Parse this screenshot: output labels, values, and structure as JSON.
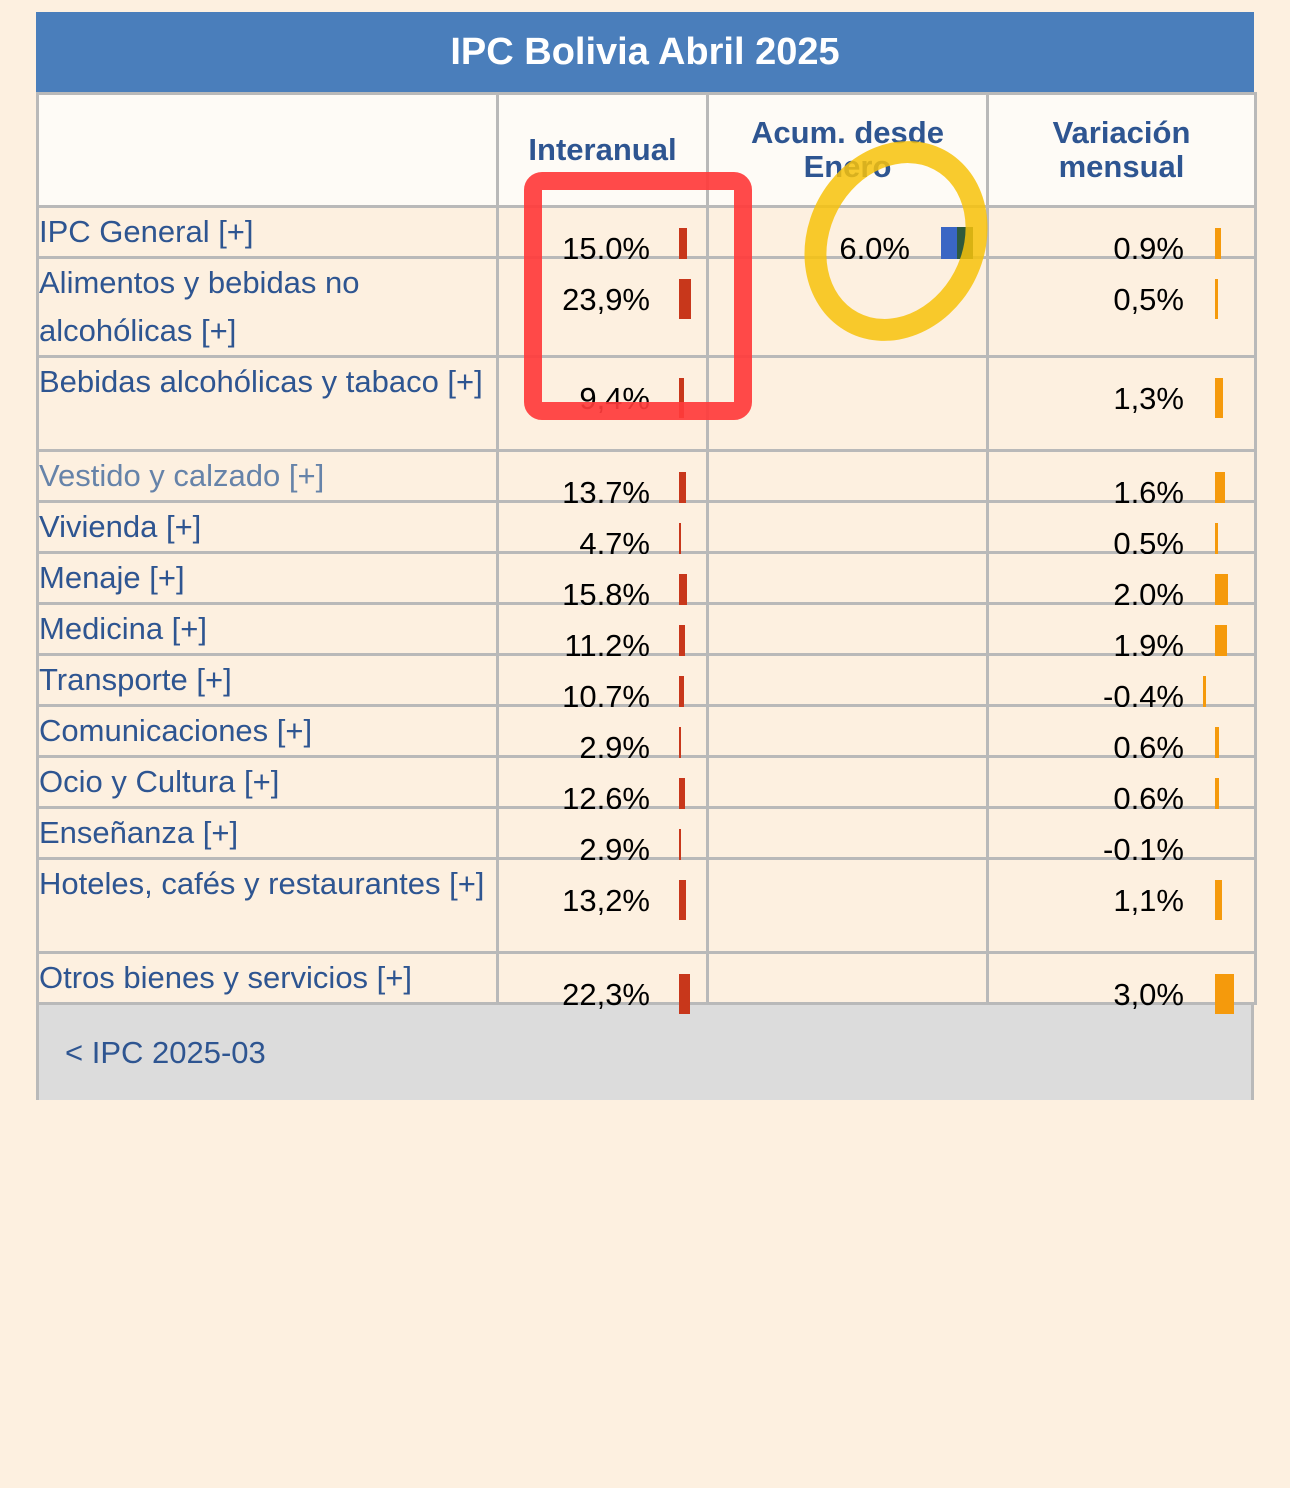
{
  "title": "IPC Bolivia Abril 2025",
  "columns": {
    "interanual": "Interanual",
    "acum_line1": "Acum. desde",
    "acum_line2": "Enero",
    "mensual_line1": "Variación",
    "mensual_line2": "mensual"
  },
  "rows": [
    {
      "name": "IPC General [+]",
      "interanual": "15,0%",
      "acum": "6,0%",
      "mensual": "0,9%",
      "inter_value": 15.0,
      "acum_value": 6.0,
      "mens_value": 0.9
    },
    {
      "name": "Alimentos y bebidas no alcohólicas [+]",
      "interanual": "23,9%",
      "acum": "",
      "mensual": "0,5%",
      "inter_value": 23.9,
      "mens_value": 0.5
    },
    {
      "name": "Bebidas alcohólicas y tabaco [+]",
      "interanual": "9,4%",
      "acum": "",
      "mensual": "1,3%",
      "inter_value": 9.4,
      "mens_value": 1.3
    },
    {
      "name": "Vestido y calzado [+]",
      "interanual": "13,7%",
      "acum": "",
      "mensual": "1,6%",
      "inter_value": 13.7,
      "mens_value": 1.6
    },
    {
      "name": "Vivienda [+]",
      "interanual": "4,7%",
      "acum": "",
      "mensual": "0,5%",
      "inter_value": 4.7,
      "mens_value": 0.5
    },
    {
      "name": "Menaje [+]",
      "interanual": "15,8%",
      "acum": "",
      "mensual": "2,0%",
      "inter_value": 15.8,
      "mens_value": 2.0
    },
    {
      "name": "Medicina [+]",
      "interanual": "11,2%",
      "acum": "",
      "mensual": "1,9%",
      "inter_value": 11.2,
      "mens_value": 1.9
    },
    {
      "name": "Transporte [+]",
      "interanual": "10,7%",
      "acum": "",
      "mensual": "-0,4%",
      "inter_value": 10.7,
      "mens_value": -0.4
    },
    {
      "name": "Comunicaciones [+]",
      "interanual": "2,9%",
      "acum": "",
      "mensual": "0,6%",
      "inter_value": 2.9,
      "mens_value": 0.6
    },
    {
      "name": "Ocio y Cultura [+]",
      "interanual": "12,6%",
      "acum": "",
      "mensual": "0,6%",
      "inter_value": 12.6,
      "mens_value": 0.6
    },
    {
      "name": "Enseñanza [+]",
      "interanual": "2,9%",
      "acum": "",
      "mensual": "-0,1%",
      "inter_value": 2.9,
      "mens_value": -0.1
    },
    {
      "name": "Hoteles, cafés y restaurantes [+]",
      "interanual": "13,2%",
      "acum": "",
      "mensual": "1,1%",
      "inter_value": 13.2,
      "mens_value": 1.1
    },
    {
      "name": "Otros bienes y servicios [+]",
      "interanual": "22,3%",
      "acum": "",
      "mensual": "3,0%",
      "inter_value": 22.3,
      "mens_value": 3.0
    }
  ],
  "footer": {
    "prev_link": "< IPC 2025-03"
  },
  "colors": {
    "header": "#4a7ebb",
    "interanual_bar": "#c8371b",
    "mensual_bar": "#f59a0c",
    "acum_bar": "#3a66c4",
    "annotation_box": "#ff3b3b",
    "annotation_ring": "#f7c20a"
  }
}
